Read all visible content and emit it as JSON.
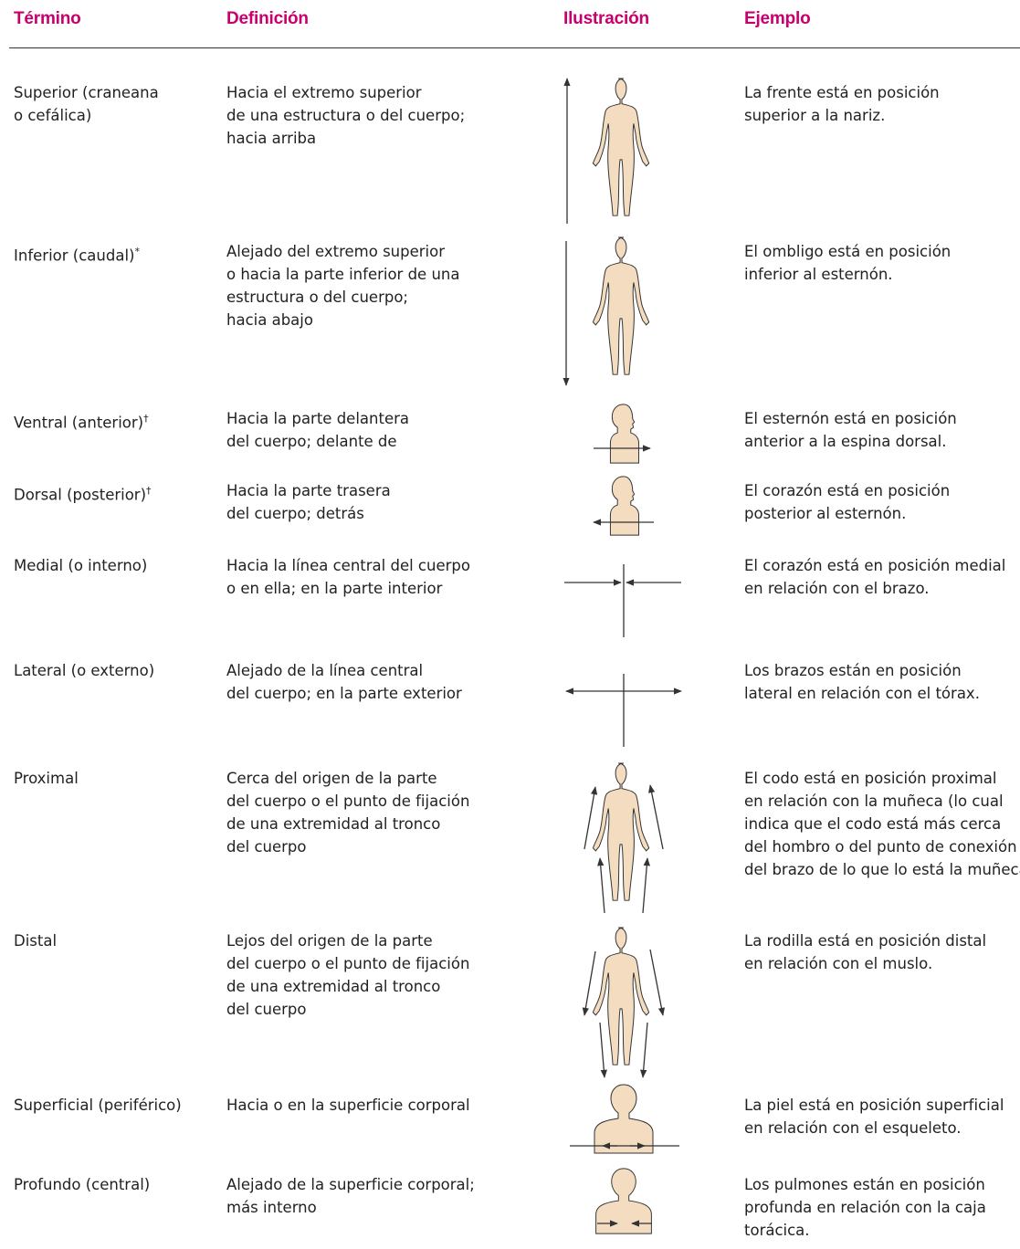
{
  "header": {
    "columns": [
      "Término",
      "Definición",
      "Ilustración",
      "Ejemplo"
    ]
  },
  "table": {
    "rows": [
      {
        "term": [
          "Superior (craneana",
          "o cefálica)"
        ],
        "definition": [
          "Hacia el extremo superior",
          "de una estructura o del cuerpo;",
          "hacia arriba"
        ],
        "example": [
          "La frente está en posición",
          "superior a la nariz."
        ]
      },
      {
        "term": [
          "Inferior (caudal)"
        ],
        "note": "*",
        "definition": [
          "Alejado del extremo superior",
          "o hacia la parte inferior de una",
          "estructura o del cuerpo;",
          "hacia abajo"
        ],
        "example": [
          "El ombligo está en posición",
          "inferior al esternón."
        ]
      },
      {
        "term": [
          "Ventral (anterior)"
        ],
        "note": "†",
        "definition": [
          "Hacia la parte delantera",
          "del cuerpo; delante de"
        ],
        "example": [
          "El esternón está en posición",
          "anterior a la espina dorsal."
        ]
      },
      {
        "term": [
          "Dorsal (posterior)"
        ],
        "note": "†",
        "definition": [
          "Hacia la parte trasera",
          "del cuerpo; detrás"
        ],
        "example": [
          "El corazón está en posición",
          "posterior al esternón."
        ]
      },
      {
        "term": [
          "Medial (o interno)"
        ],
        "definition": [
          "Hacia la línea central del cuerpo",
          "o en ella; en la parte interior"
        ],
        "example": [
          "El corazón está en posición medial",
          "en relación con el brazo."
        ]
      },
      {
        "term": [
          "Lateral (o externo)"
        ],
        "definition": [
          "Alejado de la línea central",
          "del cuerpo; en la parte exterior"
        ],
        "example": [
          "Los brazos están en posición",
          "lateral en relación con el tórax."
        ]
      },
      {
        "term": [
          "Proximal"
        ],
        "definition": [
          "Cerca del origen de la parte",
          "del cuerpo o el punto de fijación",
          "de una extremidad al tronco",
          "del cuerpo"
        ],
        "example": [
          "El codo está en posición proximal",
          "en relación con la muñeca (lo cual",
          "indica que el codo está más cerca",
          "del hombro o del punto de conexión",
          "del brazo de lo que lo está la muñeca)."
        ]
      },
      {
        "term": [
          "Distal"
        ],
        "definition": [
          "Lejos del origen de la parte",
          "del cuerpo o el punto de fijación",
          "de una extremidad al tronco",
          "del cuerpo"
        ],
        "example": [
          "La rodilla está en posición distal",
          "en relación con el muslo."
        ]
      },
      {
        "term": [
          "Superficial (periférico)"
        ],
        "definition": [
          "Hacia o en la superficie corporal"
        ],
        "example": [
          "La piel está en posición superficial",
          "en relación con el esqueleto."
        ]
      },
      {
        "term": [
          "Profundo (central)"
        ],
        "definition": [
          "Alejado de la superficie corporal;",
          "más interno"
        ],
        "example": [
          "Los pulmones están en posición",
          "profunda en relación con la caja",
          "torácica."
        ]
      }
    ]
  }
}
